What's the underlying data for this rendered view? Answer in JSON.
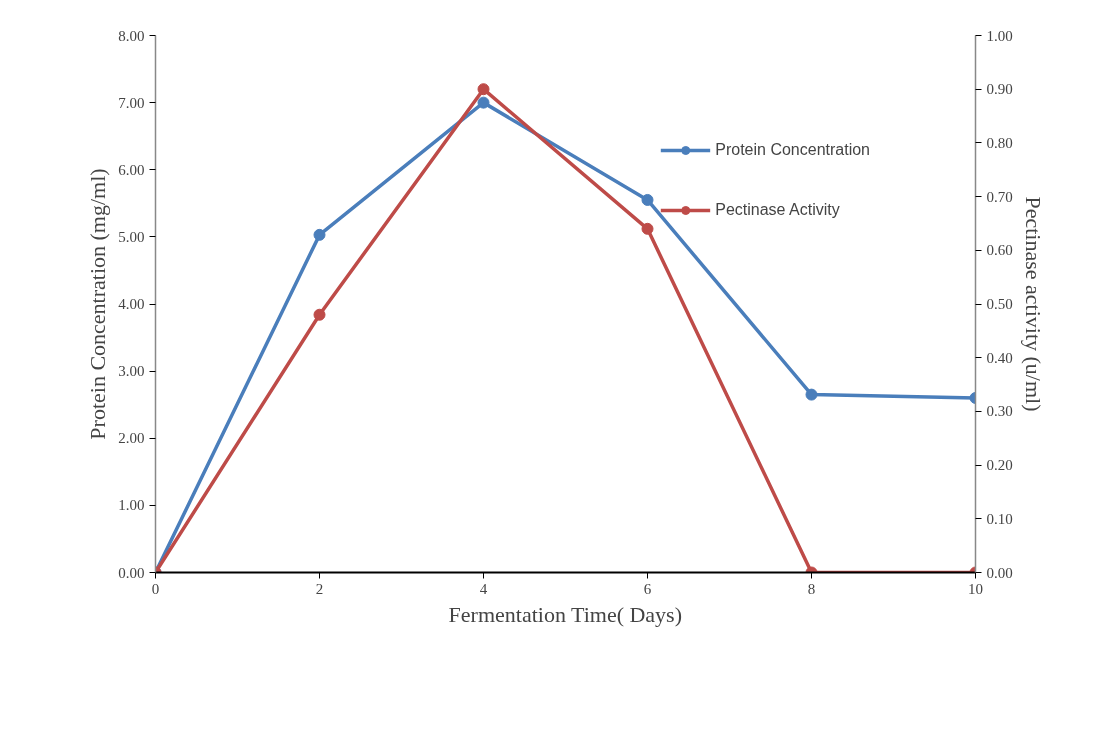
{
  "chart_data": {
    "type": "line",
    "xlabel": "Fermentation Time( Days)",
    "ylabel": "Protein Concentration (mg/ml)",
    "y2label": "Pectinase activity (u/ml)",
    "x": [
      0,
      2,
      4,
      6,
      8,
      10
    ],
    "series": [
      {
        "name": "Protein Concentration",
        "color": "#4a7ebb",
        "values": [
          0,
          5.03,
          7.0,
          5.55,
          2.65,
          2.6
        ]
      },
      {
        "name": "Pectinase Activity",
        "color": "#be4b48",
        "axis": "y2",
        "values": [
          0,
          0.48,
          0.9,
          0.64,
          0,
          0
        ]
      }
    ],
    "xlim": [
      0,
      10
    ],
    "xticks": [
      0,
      2,
      4,
      6,
      8,
      10
    ],
    "ylim": [
      0,
      8
    ],
    "yticks": [
      {
        "value": 0,
        "label": "0.00"
      },
      {
        "value": 1,
        "label": "1.00"
      },
      {
        "value": 2,
        "label": "2.00"
      },
      {
        "value": 3,
        "label": "3.00"
      },
      {
        "value": 4,
        "label": "4.00"
      },
      {
        "value": 5,
        "label": "5.00"
      },
      {
        "value": 6,
        "label": "6.00"
      },
      {
        "value": 7,
        "label": "7.00"
      },
      {
        "value": 8,
        "label": "8.00"
      }
    ],
    "y2lim": [
      0,
      1
    ],
    "y2ticks": [
      {
        "value": 0,
        "label": "0.00"
      },
      {
        "value": 0.1,
        "label": "0.10"
      },
      {
        "value": 0.2,
        "label": "0.20"
      },
      {
        "value": 0.3,
        "label": "0.30"
      },
      {
        "value": 0.4,
        "label": "0.40"
      },
      {
        "value": 0.5,
        "label": "0.50"
      },
      {
        "value": 0.6,
        "label": "0.60"
      },
      {
        "value": 0.7,
        "label": "0.70"
      },
      {
        "value": 0.8,
        "label": "0.80"
      },
      {
        "value": 0.9,
        "label": "0.90"
      },
      {
        "value": 1,
        "label": "1.00"
      }
    ],
    "grid": false,
    "legend": "top right",
    "marker": "circle",
    "line_style": "solid"
  }
}
